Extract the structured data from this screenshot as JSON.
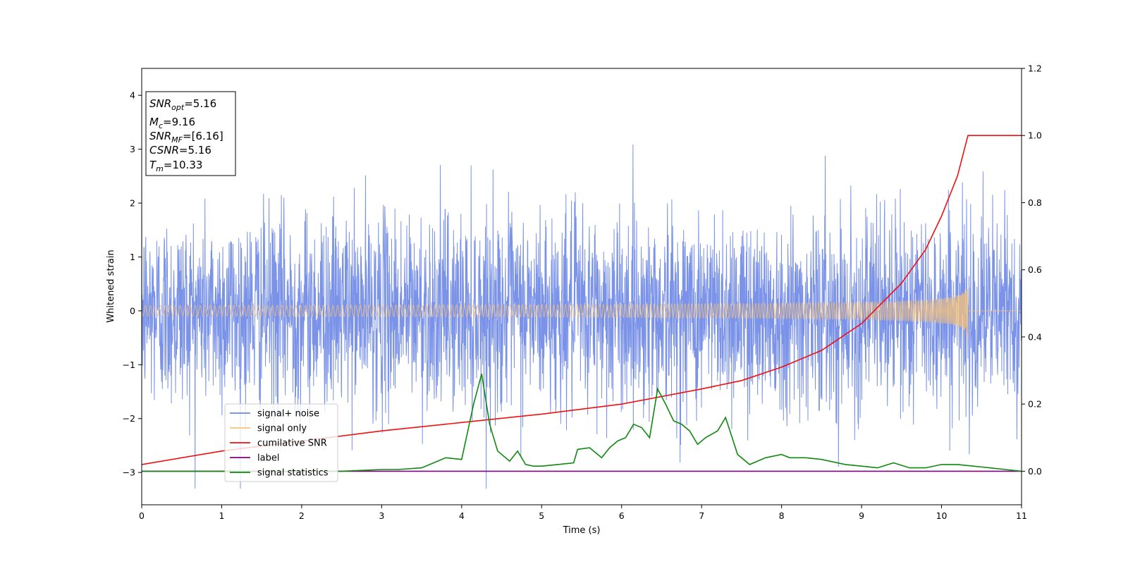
{
  "chart_data": {
    "type": "line",
    "xlabel": "Time (s)",
    "ylabel": "Whitened strain",
    "xlim": [
      0,
      11
    ],
    "ylim": [
      -3.6,
      4.5
    ],
    "y2lim": [
      -0.1,
      1.2
    ],
    "x_ticks": [
      "0",
      "1",
      "2",
      "3",
      "4",
      "5",
      "6",
      "7",
      "8",
      "9",
      "10",
      "11"
    ],
    "y_ticks": [
      "−3",
      "−2",
      "−1",
      "0",
      "1",
      "2",
      "3",
      "4"
    ],
    "y_tick_values": [
      -3,
      -2,
      -1,
      0,
      1,
      2,
      3,
      4
    ],
    "y2_ticks": [
      "0.0",
      "0.2",
      "0.4",
      "0.6",
      "0.8",
      "1.0",
      "1.2"
    ],
    "y2_tick_values": [
      0,
      0.2,
      0.4,
      0.6,
      0.8,
      1.0,
      1.2
    ],
    "grid": false,
    "legend_position": "lower-left",
    "info_box": {
      "snr_opt": {
        "main": "SNR",
        "sub": "opt",
        "value": "=5.16"
      },
      "mc": {
        "main": "M",
        "sub": "c",
        "value": "=9.16"
      },
      "snr_mf": {
        "main": "SNR",
        "sub": "MF",
        "value": "=[6.16]"
      },
      "csnr": {
        "main": "CSNR",
        "value": "=5.16"
      },
      "tm": {
        "main": "T",
        "sub": "m",
        "value": "=10.33"
      }
    },
    "series": [
      {
        "name": "signal+ noise",
        "color": "#6b86e6",
        "axis": "left",
        "kind": "noise",
        "std": 0.9,
        "clip": [
          -3.3,
          4.2
        ]
      },
      {
        "name": "signal only",
        "color": "#f5c27a",
        "axis": "left",
        "kind": "chirp",
        "merger_time": 10.33,
        "peak_amplitude": 0.7
      },
      {
        "name": "cumilative SNR",
        "color": "#ee1111",
        "axis": "right",
        "x": [
          0,
          1,
          2,
          3,
          4,
          5,
          6,
          7,
          7.5,
          8,
          8.5,
          9,
          9.5,
          9.8,
          10,
          10.2,
          10.33,
          10.34,
          11
        ],
        "values": [
          0.02,
          0.06,
          0.09,
          0.12,
          0.145,
          0.17,
          0.2,
          0.245,
          0.27,
          0.31,
          0.36,
          0.44,
          0.56,
          0.66,
          0.76,
          0.88,
          1.0,
          1.0,
          1.0
        ]
      },
      {
        "name": "label",
        "color": "#800080",
        "axis": "right",
        "x": [
          0,
          11
        ],
        "values": [
          0.0,
          0.0
        ]
      },
      {
        "name": "signal statistics",
        "color": "#118811",
        "axis": "right",
        "x": [
          0,
          0.5,
          1,
          1.5,
          2,
          2.5,
          3,
          3.2,
          3.5,
          3.7,
          3.8,
          4.0,
          4.05,
          4.15,
          4.25,
          4.35,
          4.45,
          4.6,
          4.7,
          4.8,
          4.9,
          5.0,
          5.2,
          5.4,
          5.45,
          5.6,
          5.75,
          5.85,
          5.95,
          6.05,
          6.15,
          6.25,
          6.35,
          6.45,
          6.55,
          6.65,
          6.75,
          6.85,
          6.95,
          7.05,
          7.2,
          7.3,
          7.45,
          7.6,
          7.8,
          8.0,
          8.1,
          8.3,
          8.5,
          8.8,
          9.0,
          9.2,
          9.4,
          9.6,
          9.8,
          10.0,
          10.2,
          10.4,
          10.6,
          10.8,
          11.0
        ],
        "values": [
          0.0,
          0.0,
          0.0,
          0.0,
          0.0,
          0.0,
          0.005,
          0.005,
          0.01,
          0.03,
          0.04,
          0.035,
          0.09,
          0.2,
          0.29,
          0.14,
          0.06,
          0.03,
          0.06,
          0.02,
          0.015,
          0.015,
          0.02,
          0.025,
          0.065,
          0.07,
          0.04,
          0.07,
          0.09,
          0.1,
          0.14,
          0.13,
          0.1,
          0.245,
          0.2,
          0.15,
          0.14,
          0.12,
          0.08,
          0.1,
          0.12,
          0.16,
          0.05,
          0.02,
          0.04,
          0.05,
          0.04,
          0.04,
          0.035,
          0.02,
          0.015,
          0.01,
          0.025,
          0.01,
          0.01,
          0.02,
          0.02,
          0.015,
          0.01,
          0.005,
          0.0
        ]
      }
    ]
  }
}
